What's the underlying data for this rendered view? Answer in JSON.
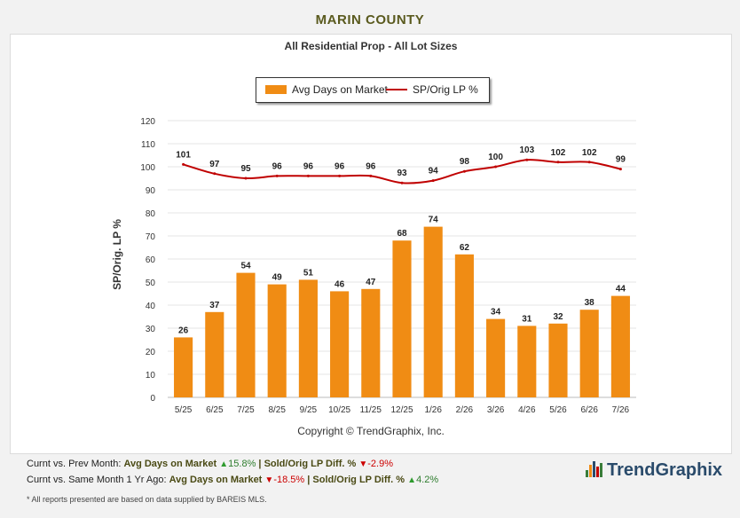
{
  "page": {
    "title": "MARIN COUNTY",
    "subtitle": "All Residential Prop - All Lot Sizes",
    "copyright": "Copyright © TrendGraphix, Inc.",
    "note": "* All reports presented are based on data supplied by BAREIS MLS.",
    "logo_text": "TrendGraphix"
  },
  "footer": {
    "row1": {
      "prefix": "Curnt vs. Prev Month:",
      "m1_label": "Avg Days on Market",
      "m1_dir": "up",
      "m1_value": "15.8%",
      "sep": "|",
      "m2_label": "Sold/Orig LP Diff. %",
      "m2_dir": "down",
      "m2_value": "-2.9%"
    },
    "row2": {
      "prefix": "Curnt vs. Same Month 1 Yr Ago:",
      "m1_label": "Avg Days on Market",
      "m1_dir": "down",
      "m1_value": "-18.5%",
      "sep": "|",
      "m2_label": "Sold/Orig LP Diff. %",
      "m2_dir": "up",
      "m2_value": "4.2%"
    }
  },
  "chart_data": {
    "type": "bar",
    "categories": [
      "5/25",
      "6/25",
      "7/25",
      "8/25",
      "9/25",
      "10/25",
      "11/25",
      "12/25",
      "1/26",
      "2/26",
      "3/26",
      "4/26",
      "5/26",
      "6/26",
      "7/26"
    ],
    "series": [
      {
        "name": "Avg Days on Market",
        "type": "bar",
        "color": "#f08c14",
        "values": [
          26,
          37,
          54,
          49,
          51,
          46,
          47,
          68,
          74,
          62,
          34,
          31,
          32,
          38,
          44
        ]
      },
      {
        "name": "SP/Orig LP %",
        "type": "line",
        "color": "#c00000",
        "values": [
          101,
          97,
          95,
          96,
          96,
          96,
          96,
          93,
          94,
          98,
          100,
          103,
          102,
          102,
          99
        ]
      }
    ],
    "title": "All Residential Prop - All Lot Sizes",
    "ylabel": "SP/Orig. LP %",
    "xlabel": "",
    "ylim": [
      0,
      120
    ],
    "yticks": [
      0,
      10,
      20,
      30,
      40,
      50,
      60,
      70,
      80,
      90,
      100,
      110,
      120
    ],
    "grid": true,
    "legend": "top-center"
  }
}
